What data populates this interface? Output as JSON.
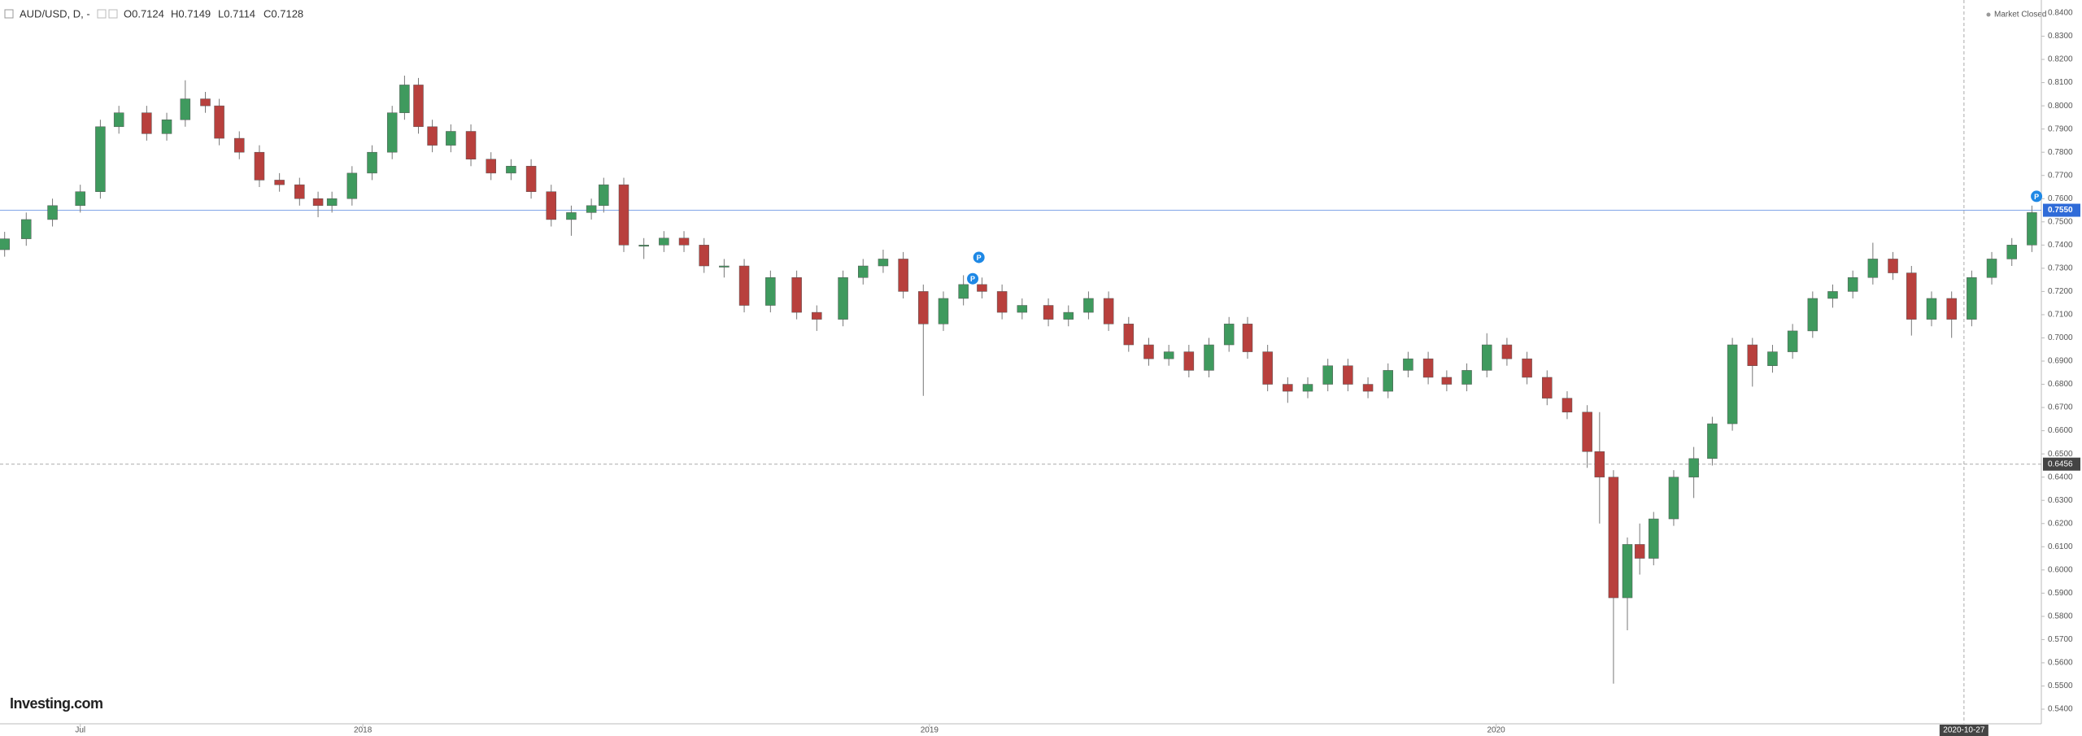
{
  "chart_data": {
    "type": "candlestick",
    "title": "AUD/USD, D, -",
    "ohlc_readout": [
      "O0.7124",
      "H0.7149",
      "L0.7114",
      "C0.7128"
    ],
    "status": "Market Closed",
    "logo": "Investing.com",
    "up_color": "#3f9a5e",
    "down_color": "#b8403d",
    "grid": false,
    "xlim": [
      0,
      1320
    ],
    "ylim": [
      0.5337,
      0.8456
    ],
    "xticks": [
      {
        "value": 52,
        "label": "Jul"
      },
      {
        "value": 235,
        "label": "2018"
      },
      {
        "value": 602,
        "label": "2019"
      },
      {
        "value": 969,
        "label": "2020"
      }
    ],
    "crosshair": {
      "x": {
        "value": 1272,
        "label": "2020-10-27"
      },
      "y": {
        "value": 0.6456,
        "label": "0.6456"
      }
    },
    "price_line": {
      "value": 0.755,
      "label": "0.7550",
      "color": "#2f6bd8"
    },
    "yticks": [
      {
        "value": 0.84,
        "label": "0.8400"
      },
      {
        "value": 0.83,
        "label": "0.8300"
      },
      {
        "value": 0.82,
        "label": "0.8200"
      },
      {
        "value": 0.81,
        "label": "0.8100"
      },
      {
        "value": 0.8,
        "label": "0.8000"
      },
      {
        "value": 0.79,
        "label": "0.7900"
      },
      {
        "value": 0.78,
        "label": "0.7800"
      },
      {
        "value": 0.77,
        "label": "0.7700"
      },
      {
        "value": 0.76,
        "label": "0.7600"
      },
      {
        "value": 0.75,
        "label": "0.7500"
      },
      {
        "value": 0.74,
        "label": "0.7400"
      },
      {
        "value": 0.73,
        "label": "0.7300"
      },
      {
        "value": 0.72,
        "label": "0.7200"
      },
      {
        "value": 0.71,
        "label": "0.7100"
      },
      {
        "value": 0.7,
        "label": "0.7000"
      },
      {
        "value": 0.69,
        "label": "0.6900"
      },
      {
        "value": 0.68,
        "label": "0.6800"
      },
      {
        "value": 0.67,
        "label": "0.6700"
      },
      {
        "value": 0.66,
        "label": "0.6600"
      },
      {
        "value": 0.65,
        "label": "0.6500"
      },
      {
        "value": 0.64,
        "label": "0.6400"
      },
      {
        "value": 0.63,
        "label": "0.6300"
      },
      {
        "value": 0.62,
        "label": "0.6200"
      },
      {
        "value": 0.61,
        "label": "0.6100"
      },
      {
        "value": 0.6,
        "label": "0.6000"
      },
      {
        "value": 0.59,
        "label": "0.5900"
      },
      {
        "value": 0.58,
        "label": "0.5800"
      },
      {
        "value": 0.57,
        "label": "0.5700"
      },
      {
        "value": 0.56,
        "label": "0.5600"
      },
      {
        "value": 0.55,
        "label": "0.5500"
      },
      {
        "value": 0.54,
        "label": "0.5400"
      }
    ],
    "annotations": [
      {
        "text": "P",
        "x": 634,
        "y": 0.7347
      },
      {
        "text": "P",
        "x": 630,
        "y": 0.7255
      },
      {
        "text": "P",
        "x": 1319,
        "y": 0.761
      }
    ],
    "x": [
      3,
      17,
      34,
      52,
      65,
      77,
      95,
      108,
      120,
      133,
      142,
      155,
      168,
      181,
      194,
      206,
      215,
      228,
      241,
      254,
      262,
      271,
      280,
      292,
      305,
      318,
      331,
      344,
      357,
      370,
      383,
      391,
      404,
      417,
      430,
      443,
      456,
      469,
      482,
      499,
      516,
      529,
      546,
      559,
      572,
      585,
      598,
      611,
      624,
      636,
      649,
      662,
      679,
      692,
      705,
      718,
      731,
      744,
      757,
      770,
      783,
      796,
      808,
      821,
      834,
      847,
      860,
      873,
      886,
      899,
      912,
      925,
      937,
      950,
      963,
      976,
      989,
      1002,
      1015,
      1028,
      1036,
      1045,
      1054,
      1062,
      1071,
      1084,
      1097,
      1109,
      1122,
      1135,
      1148,
      1161,
      1174,
      1187,
      1200,
      1213,
      1226,
      1238,
      1251,
      1264,
      1277,
      1290,
      1303,
      1316
    ],
    "open": [
      0.738,
      0.7427,
      0.751,
      0.757,
      0.763,
      0.791,
      0.797,
      0.788,
      0.794,
      0.803,
      0.8,
      0.786,
      0.78,
      0.768,
      0.766,
      0.76,
      0.757,
      0.76,
      0.771,
      0.78,
      0.797,
      0.809,
      0.791,
      0.783,
      0.789,
      0.777,
      0.771,
      0.774,
      0.763,
      0.751,
      0.754,
      0.757,
      0.766,
      0.74,
      0.74,
      0.743,
      0.74,
      0.731,
      0.731,
      0.714,
      0.726,
      0.711,
      0.708,
      0.726,
      0.731,
      0.734,
      0.72,
      0.706,
      0.717,
      0.723,
      0.72,
      0.711,
      0.714,
      0.708,
      0.711,
      0.717,
      0.706,
      0.697,
      0.691,
      0.694,
      0.686,
      0.697,
      0.706,
      0.694,
      0.68,
      0.677,
      0.68,
      0.688,
      0.68,
      0.677,
      0.686,
      0.691,
      0.683,
      0.68,
      0.686,
      0.697,
      0.691,
      0.683,
      0.674,
      0.668,
      0.651,
      0.64,
      0.588,
      0.611,
      0.605,
      0.622,
      0.64,
      0.648,
      0.663,
      0.697,
      0.688,
      0.694,
      0.703,
      0.717,
      0.72,
      0.726,
      0.734,
      0.728,
      0.708,
      0.717,
      0.708,
      0.726,
      0.734,
      0.74
    ],
    "high": [
      0.7457,
      0.754,
      0.76,
      0.766,
      0.794,
      0.8,
      0.8,
      0.797,
      0.811,
      0.806,
      0.803,
      0.789,
      0.783,
      0.771,
      0.769,
      0.763,
      0.763,
      0.774,
      0.783,
      0.8,
      0.813,
      0.812,
      0.794,
      0.792,
      0.792,
      0.78,
      0.777,
      0.777,
      0.766,
      0.757,
      0.76,
      0.769,
      0.769,
      0.743,
      0.746,
      0.746,
      0.743,
      0.734,
      0.734,
      0.729,
      0.729,
      0.714,
      0.729,
      0.734,
      0.738,
      0.737,
      0.723,
      0.72,
      0.727,
      0.726,
      0.723,
      0.717,
      0.717,
      0.714,
      0.72,
      0.72,
      0.709,
      0.7,
      0.697,
      0.697,
      0.7,
      0.709,
      0.709,
      0.697,
      0.683,
      0.683,
      0.691,
      0.691,
      0.683,
      0.689,
      0.694,
      0.694,
      0.686,
      0.689,
      0.702,
      0.7,
      0.694,
      0.686,
      0.677,
      0.671,
      0.668,
      0.643,
      0.614,
      0.62,
      0.625,
      0.643,
      0.653,
      0.666,
      0.7,
      0.7,
      0.697,
      0.706,
      0.72,
      0.723,
      0.729,
      0.741,
      0.737,
      0.731,
      0.72,
      0.72,
      0.729,
      0.737,
      0.743,
      0.757
    ],
    "low": [
      0.735,
      0.7397,
      0.748,
      0.754,
      0.76,
      0.788,
      0.785,
      0.785,
      0.791,
      0.797,
      0.783,
      0.777,
      0.765,
      0.763,
      0.757,
      0.752,
      0.754,
      0.757,
      0.768,
      0.777,
      0.794,
      0.788,
      0.78,
      0.78,
      0.774,
      0.768,
      0.768,
      0.76,
      0.748,
      0.744,
      0.751,
      0.754,
      0.737,
      0.734,
      0.737,
      0.737,
      0.728,
      0.726,
      0.711,
      0.711,
      0.708,
      0.703,
      0.705,
      0.723,
      0.728,
      0.717,
      0.675,
      0.703,
      0.714,
      0.717,
      0.708,
      0.708,
      0.705,
      0.705,
      0.708,
      0.703,
      0.694,
      0.688,
      0.688,
      0.683,
      0.683,
      0.694,
      0.691,
      0.677,
      0.672,
      0.674,
      0.677,
      0.677,
      0.674,
      0.674,
      0.683,
      0.68,
      0.677,
      0.677,
      0.683,
      0.688,
      0.68,
      0.671,
      0.665,
      0.644,
      0.62,
      0.551,
      0.574,
      0.598,
      0.602,
      0.619,
      0.631,
      0.645,
      0.66,
      0.679,
      0.685,
      0.691,
      0.7,
      0.713,
      0.717,
      0.723,
      0.725,
      0.701,
      0.705,
      0.7,
      0.705,
      0.723,
      0.731,
      0.737
    ],
    "close": [
      0.7427,
      0.751,
      0.757,
      0.763,
      0.791,
      0.797,
      0.788,
      0.794,
      0.803,
      0.8,
      0.786,
      0.78,
      0.768,
      0.766,
      0.76,
      0.757,
      0.76,
      0.771,
      0.78,
      0.797,
      0.809,
      0.791,
      0.783,
      0.789,
      0.777,
      0.771,
      0.774,
      0.763,
      0.751,
      0.754,
      0.757,
      0.766,
      0.74,
      0.74,
      0.743,
      0.74,
      0.731,
      0.731,
      0.714,
      0.726,
      0.711,
      0.708,
      0.726,
      0.731,
      0.734,
      0.72,
      0.706,
      0.717,
      0.723,
      0.72,
      0.711,
      0.714,
      0.708,
      0.711,
      0.717,
      0.706,
      0.697,
      0.691,
      0.694,
      0.686,
      0.697,
      0.706,
      0.694,
      0.68,
      0.677,
      0.68,
      0.688,
      0.68,
      0.677,
      0.686,
      0.691,
      0.683,
      0.68,
      0.686,
      0.697,
      0.691,
      0.683,
      0.674,
      0.668,
      0.651,
      0.64,
      0.588,
      0.611,
      0.605,
      0.622,
      0.64,
      0.648,
      0.663,
      0.697,
      0.688,
      0.694,
      0.703,
      0.717,
      0.72,
      0.726,
      0.734,
      0.728,
      0.708,
      0.717,
      0.708,
      0.726,
      0.734,
      0.74,
      0.754
    ]
  }
}
